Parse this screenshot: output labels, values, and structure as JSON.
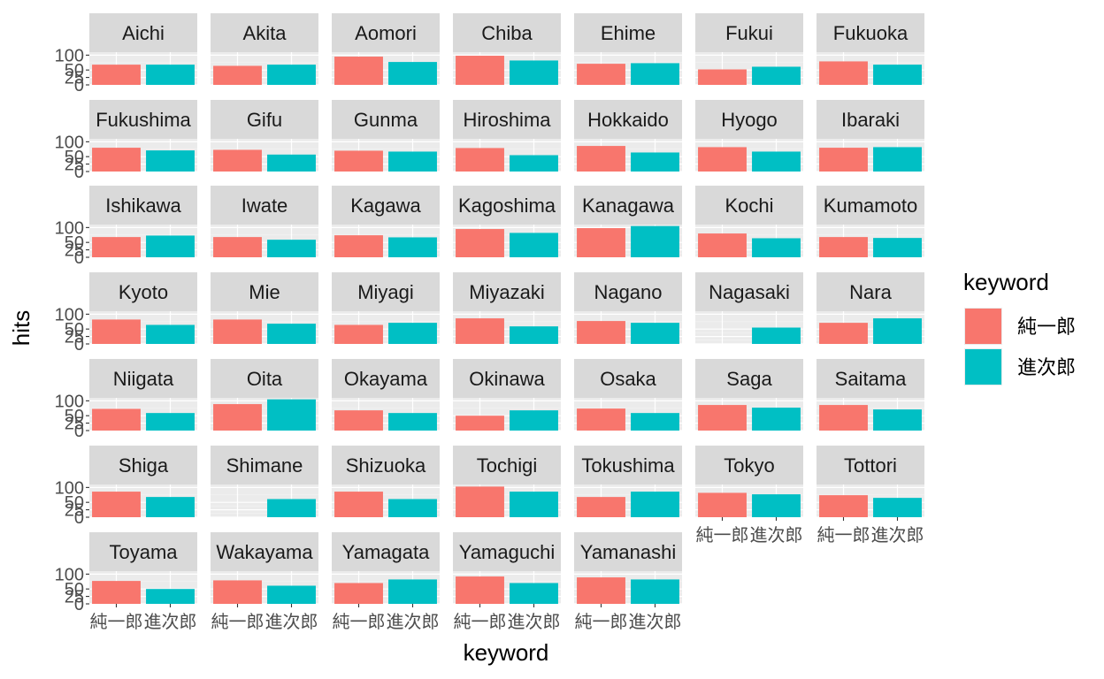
{
  "chart_data": {
    "type": "bar",
    "facet_by": "prefecture",
    "facet_layout": {
      "columns": 7,
      "rows": 7
    },
    "xlabel": "keyword",
    "ylabel": "hits",
    "categories": [
      "純一郎",
      "進次郎"
    ],
    "ylim": [
      0,
      100
    ],
    "yticks": [
      0,
      25,
      50,
      100
    ],
    "grid": true,
    "legend": {
      "title": "keyword",
      "position": "right",
      "entries": [
        {
          "label": "純一郎",
          "color": "#F8766D"
        },
        {
          "label": "進次郎",
          "color": "#00BFC4"
        }
      ]
    },
    "panels": [
      {
        "name": "Aichi",
        "values": [
          68,
          68
        ]
      },
      {
        "name": "Akita",
        "values": [
          64,
          68
        ]
      },
      {
        "name": "Aomori",
        "values": [
          95,
          77
        ]
      },
      {
        "name": "Chiba",
        "values": [
          98,
          82
        ]
      },
      {
        "name": "Ehime",
        "values": [
          71,
          73
        ]
      },
      {
        "name": "Fukui",
        "values": [
          52,
          61
        ]
      },
      {
        "name": "Fukuoka",
        "values": [
          79,
          68
        ]
      },
      {
        "name": "Fukushima",
        "values": [
          80,
          71
        ]
      },
      {
        "name": "Gifu",
        "values": [
          73,
          57
        ]
      },
      {
        "name": "Gunma",
        "values": [
          70,
          67
        ]
      },
      {
        "name": "Hiroshima",
        "values": [
          79,
          55
        ]
      },
      {
        "name": "Hokkaido",
        "values": [
          86,
          64
        ]
      },
      {
        "name": "Hyogo",
        "values": [
          82,
          67
        ]
      },
      {
        "name": "Ibaraki",
        "values": [
          80,
          82
        ]
      },
      {
        "name": "Ishikawa",
        "values": [
          68,
          73
        ]
      },
      {
        "name": "Iwate",
        "values": [
          68,
          59
        ]
      },
      {
        "name": "Kagawa",
        "values": [
          74,
          67
        ]
      },
      {
        "name": "Kagoshima",
        "values": [
          95,
          82
        ]
      },
      {
        "name": "Kanagawa",
        "values": [
          98,
          105
        ]
      },
      {
        "name": "Kochi",
        "values": [
          80,
          64
        ]
      },
      {
        "name": "Kumamoto",
        "values": [
          68,
          65
        ]
      },
      {
        "name": "Kyoto",
        "values": [
          82,
          64
        ]
      },
      {
        "name": "Mie",
        "values": [
          82,
          68
        ]
      },
      {
        "name": "Miyagi",
        "values": [
          64,
          71
        ]
      },
      {
        "name": "Miyazaki",
        "values": [
          86,
          59
        ]
      },
      {
        "name": "Nagano",
        "values": [
          77,
          71
        ]
      },
      {
        "name": "Nagasaki",
        "values": [
          0,
          55
        ]
      },
      {
        "name": "Nara",
        "values": [
          71,
          86
        ]
      },
      {
        "name": "Niigata",
        "values": [
          73,
          59
        ]
      },
      {
        "name": "Oita",
        "values": [
          89,
          105
        ]
      },
      {
        "name": "Okayama",
        "values": [
          68,
          59
        ]
      },
      {
        "name": "Okinawa",
        "values": [
          50,
          68
        ]
      },
      {
        "name": "Osaka",
        "values": [
          74,
          59
        ]
      },
      {
        "name": "Saga",
        "values": [
          86,
          77
        ]
      },
      {
        "name": "Saitama",
        "values": [
          86,
          71
        ]
      },
      {
        "name": "Shiga",
        "values": [
          86,
          68
        ]
      },
      {
        "name": "Shimane",
        "values": [
          0,
          61
        ]
      },
      {
        "name": "Shizuoka",
        "values": [
          86,
          61
        ]
      },
      {
        "name": "Tochigi",
        "values": [
          103,
          86
        ]
      },
      {
        "name": "Tokushima",
        "values": [
          68,
          86
        ]
      },
      {
        "name": "Tokyo",
        "values": [
          82,
          77
        ]
      },
      {
        "name": "Tottori",
        "values": [
          74,
          65
        ]
      },
      {
        "name": "Toyama",
        "values": [
          77,
          50
        ]
      },
      {
        "name": "Wakayama",
        "values": [
          79,
          61
        ]
      },
      {
        "name": "Yamagata",
        "values": [
          70,
          82
        ]
      },
      {
        "name": "Yamaguchi",
        "values": [
          92,
          70
        ]
      },
      {
        "name": "Yamanashi",
        "values": [
          89,
          82
        ]
      }
    ]
  }
}
